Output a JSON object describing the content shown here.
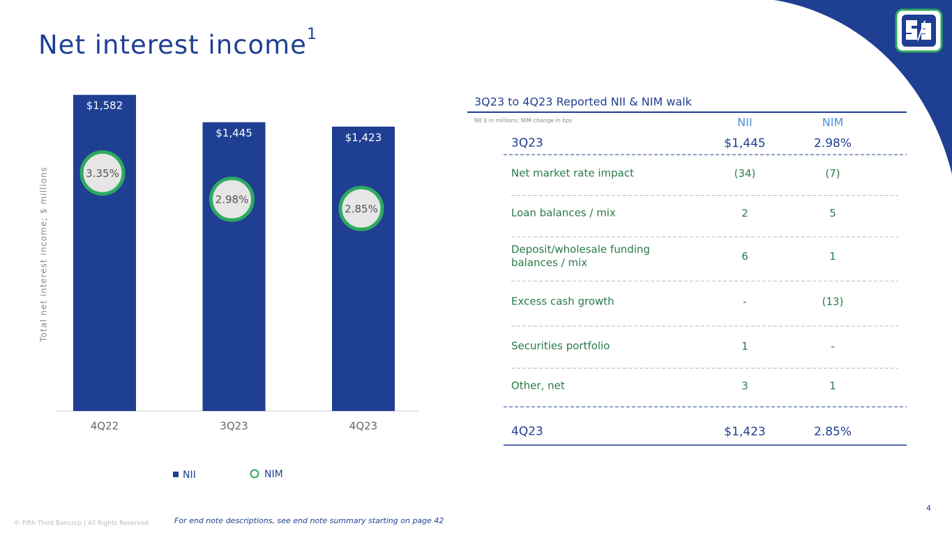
{
  "title": "Net interest income",
  "title_note": "1",
  "chart_data": {
    "type": "bar",
    "y_label": "Total net interest income; $ millions",
    "categories": [
      "4Q22",
      "3Q23",
      "4Q23"
    ],
    "ylim": [
      0,
      1600
    ],
    "y2lim": [
      0,
      4.5
    ],
    "series": [
      {
        "name": "NII",
        "color": "#1f3f93",
        "values": [
          1582,
          1445,
          1423
        ],
        "value_labels": [
          "$1,582",
          "$1,445",
          "$1,423"
        ]
      },
      {
        "name": "NIM",
        "color": "#2daa5f",
        "axis": "y2",
        "values": [
          3.35,
          2.98,
          2.85
        ],
        "value_labels": [
          "3.35%",
          "2.98%",
          "2.85%"
        ]
      }
    ]
  },
  "table": {
    "title": "3Q23 to 4Q23 Reported NII & NIM walk",
    "note": "NII $ in millions; NIM change in bps",
    "headers": [
      "NII",
      "NIM"
    ],
    "start": [
      "3Q23",
      "$1,445",
      "2.98%"
    ],
    "rows": [
      [
        "Net market rate impact",
        "(34)",
        "(7)"
      ],
      [
        "Loan balances / mix",
        "2",
        "5"
      ],
      [
        "Deposit/wholesale funding balances / mix",
        "6",
        "1"
      ],
      [
        "Excess cash growth",
        "-",
        "(13)"
      ],
      [
        "Securities portfolio",
        "1",
        "-"
      ],
      [
        "Other, net",
        "3",
        "1"
      ]
    ],
    "end": [
      "4Q23",
      "$1,423",
      "2.85%"
    ]
  },
  "footer": {
    "copyright": "© Fifth Third Bancorp | All Rights Reserved",
    "endnote": "For end note descriptions, see end note summary starting on page 42",
    "page": "4"
  }
}
